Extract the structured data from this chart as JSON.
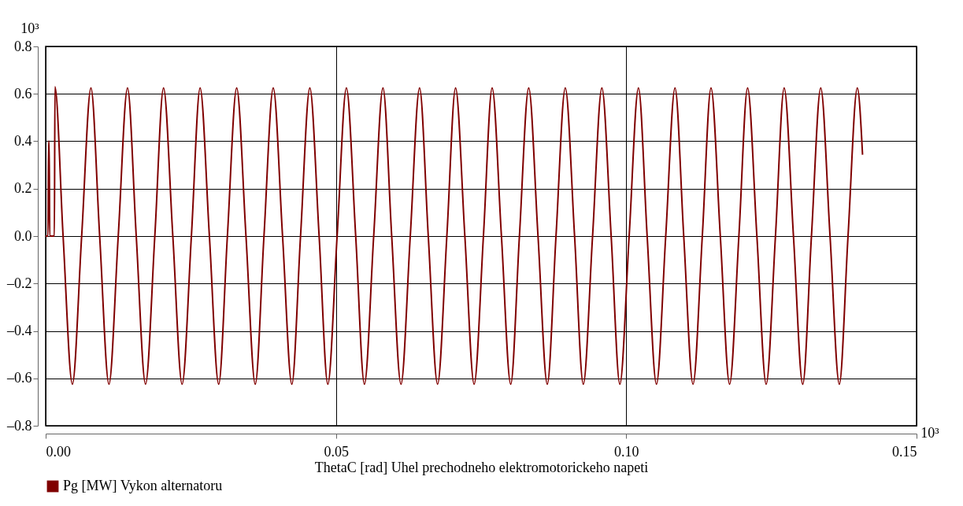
{
  "chart_data": {
    "type": "line",
    "xlabel": "ThetaC [rad] Uhel prechodneho elektromotorickeho napeti",
    "annotations": [
      "10³",
      "10³"
    ],
    "x": [
      0,
      0.0004,
      0.0005,
      0.0006,
      0.0007,
      0.0015,
      0.0016,
      0.003,
      0.0046,
      0.0062,
      0.0078,
      0.0093,
      0.0109,
      0.0125,
      0.0141,
      0.0156,
      0.0172,
      0.0188,
      0.0203,
      0.0219,
      0.0235,
      0.0251,
      0.0266,
      0.0282,
      0.0298,
      0.0313,
      0.0329,
      0.0345,
      0.0361,
      0.0376,
      0.0392,
      0.0408,
      0.0424,
      0.0439,
      0.0455,
      0.0471,
      0.0486,
      0.0502,
      0.0518,
      0.0534,
      0.0549,
      0.0565,
      0.0581,
      0.0596,
      0.0612,
      0.0628,
      0.0644,
      0.0659,
      0.0675,
      0.0691,
      0.0706,
      0.0722,
      0.0738,
      0.0754,
      0.0769,
      0.0785,
      0.0801,
      0.0816,
      0.0832,
      0.0848,
      0.0864,
      0.0879,
      0.0895,
      0.0911,
      0.0926,
      0.0942,
      0.0958,
      0.0974,
      0.0989,
      0.1005,
      0.1021,
      0.1036,
      0.1052,
      0.1068,
      0.1084,
      0.1099,
      0.1115,
      0.1131,
      0.1146,
      0.1162,
      0.1178,
      0.1194,
      0.1209,
      0.1225,
      0.1241,
      0.1257,
      0.1272,
      0.1288,
      0.1304,
      0.1319,
      0.1335,
      0.1351,
      0.1367,
      0.1382,
      0.1398,
      0.1407
    ],
    "series": [
      {
        "name": "Pg [MW] Vykon alternatoru",
        "color": "#800000",
        "values": [
          0,
          0,
          0.4,
          0.4,
          0,
          0,
          0.63,
          0,
          -0.625,
          0,
          0.625,
          0,
          -0.625,
          0,
          0.625,
          0,
          -0.625,
          0,
          0.625,
          0,
          -0.625,
          0,
          0.625,
          0,
          -0.625,
          0,
          0.625,
          0,
          -0.625,
          0,
          0.625,
          0,
          -0.625,
          0,
          0.625,
          0,
          -0.625,
          0,
          0.625,
          0,
          -0.625,
          0,
          0.625,
          0,
          -0.625,
          0,
          0.625,
          0,
          -0.625,
          0,
          0.625,
          0,
          -0.625,
          0,
          0.625,
          0,
          -0.625,
          0,
          0.625,
          0,
          -0.625,
          0,
          0.625,
          0,
          -0.625,
          0,
          0.625,
          0,
          -0.625,
          0,
          0.625,
          0,
          -0.625,
          0,
          0.625,
          0,
          -0.625,
          0,
          0.625,
          0,
          -0.625,
          0,
          0.625,
          0,
          -0.625,
          0,
          0.625,
          0,
          -0.625,
          0,
          0.625,
          0,
          -0.625,
          0,
          0.625,
          0.343
        ]
      }
    ],
    "xlim": [
      0,
      0.15
    ],
    "xticks": [
      {
        "value": 0,
        "label": "0.00"
      },
      {
        "value": 0.05,
        "label": "0.05"
      },
      {
        "value": 0.1,
        "label": "0.10"
      },
      {
        "value": 0.15,
        "label": "0.15"
      }
    ],
    "ylim": [
      -0.8,
      0.8
    ],
    "yticks": [
      {
        "value": -0.8,
        "label": "–0.8"
      },
      {
        "value": -0.6,
        "label": "–0.6"
      },
      {
        "value": -0.4,
        "label": "–0.4"
      },
      {
        "value": -0.2,
        "label": "–0.2"
      },
      {
        "value": 0,
        "label": "0.0"
      },
      0.2,
      0.4,
      0.6,
      0.8
    ],
    "grid": true,
    "legend": "bottom left",
    "marker": "none",
    "line_style": "solid"
  }
}
